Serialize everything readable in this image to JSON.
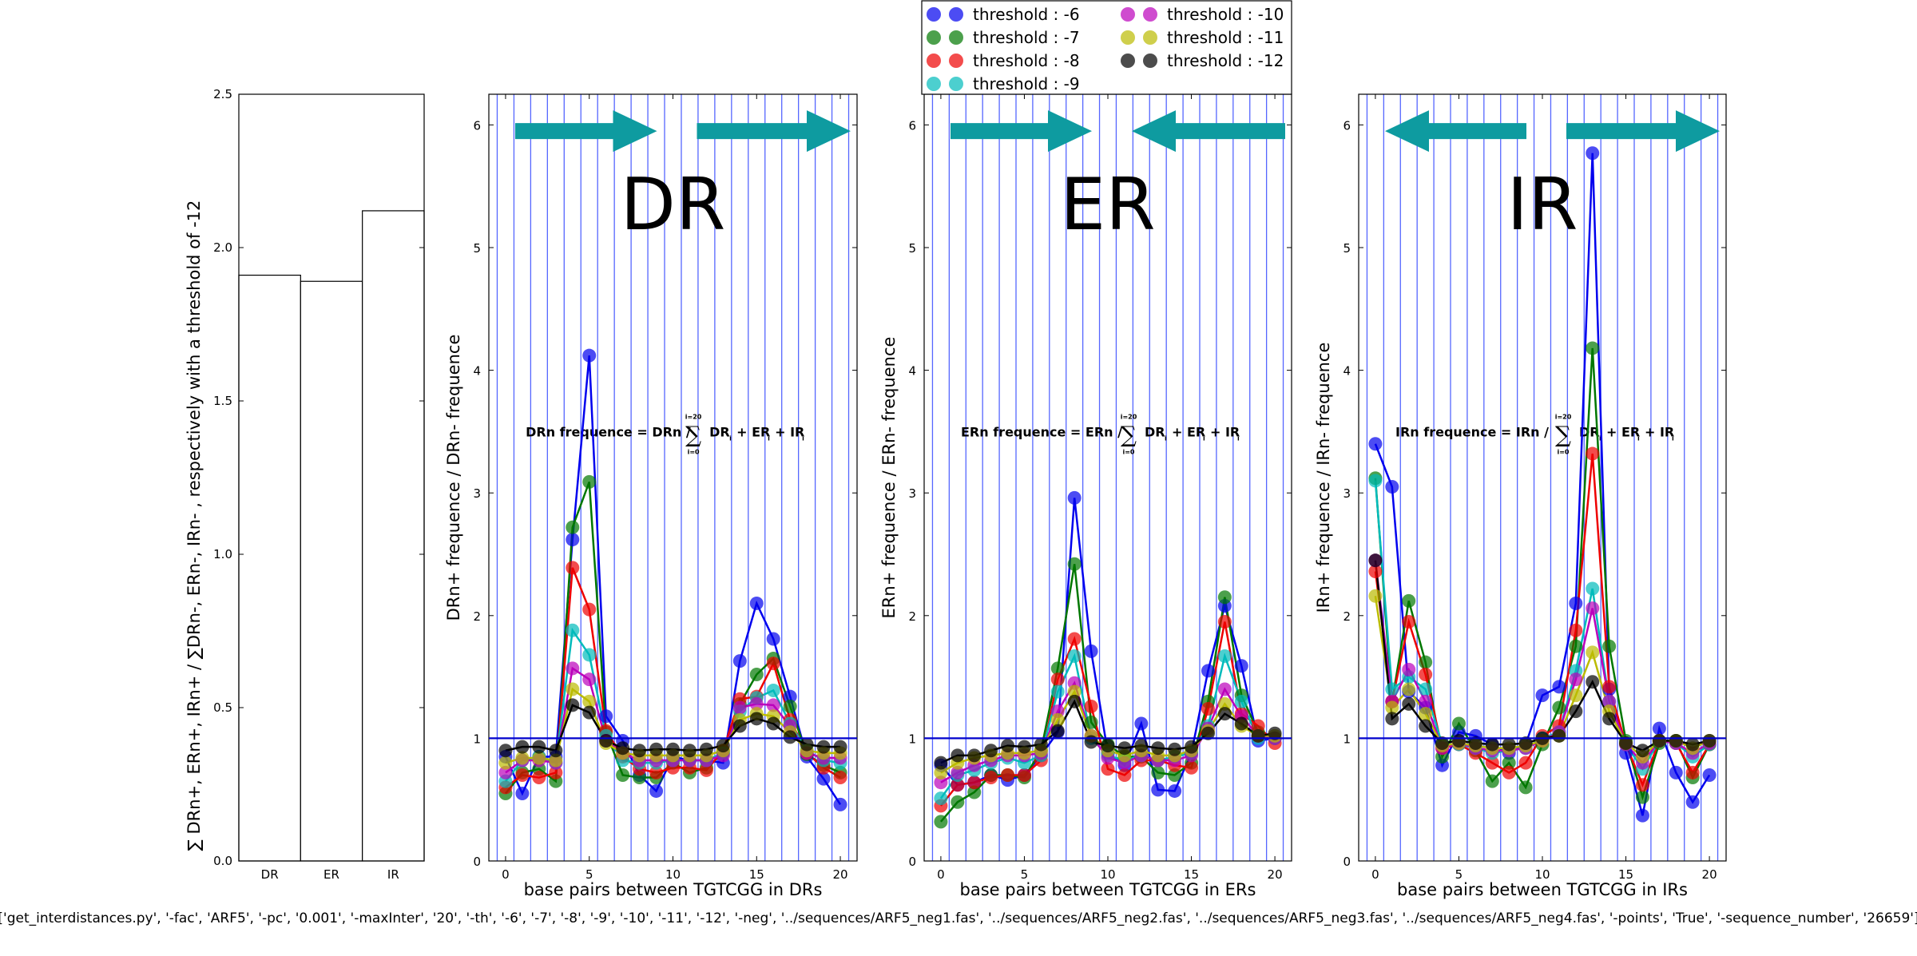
{
  "chart_data": [
    {
      "type": "bar",
      "categories": [
        "DR",
        "ER",
        "IR"
      ],
      "values": [
        1.91,
        1.89,
        2.12
      ],
      "ylim": [
        0,
        2.5
      ],
      "yticks": [
        "0.0",
        "0.5",
        "1.0",
        "1.5",
        "2.0",
        "2.5"
      ],
      "ylabel": "∑ DRn+, ERn+, IRn+ / ∑DRn-, ERn-, IRn- , respectively with a threshold of -12"
    },
    {
      "type": "line",
      "word": "DR",
      "arrows": [
        "right",
        "right"
      ],
      "formula": {
        "lhs": "DRn frequence = DRn /",
        "sum_top": "i=20",
        "sum_bottom": "i=0",
        "rhs": "DR",
        "plus1": "+ ER",
        "plus2": "+ IR",
        "sub": "i"
      },
      "xlabel": "base pairs between TGTCGG in DRs",
      "ylabel": "DRn+ frequence / DRn- frequence",
      "xlim": [
        -1,
        21
      ],
      "ylim": [
        0,
        6.25
      ],
      "xticks": [
        "0",
        "5",
        "10",
        "15",
        "20"
      ],
      "yticks": [
        "0",
        "1",
        "2",
        "3",
        "4",
        "5",
        "6"
      ],
      "reference_line": 1,
      "x": [
        0,
        1,
        2,
        3,
        4,
        5,
        6,
        7,
        8,
        9,
        10,
        11,
        12,
        13,
        14,
        15,
        16,
        17,
        18,
        19,
        20
      ],
      "series": [
        {
          "name": "threshold : -6",
          "color": "#0000ee",
          "values": [
            0.85,
            0.55,
            0.85,
            0.85,
            2.62,
            4.12,
            1.18,
            0.98,
            0.7,
            0.57,
            0.85,
            0.82,
            0.82,
            0.8,
            1.63,
            2.1,
            1.81,
            1.34,
            0.85,
            0.67,
            0.46
          ]
        },
        {
          "name": "threshold : -7",
          "color": "#007700",
          "values": [
            0.55,
            0.72,
            0.75,
            0.65,
            2.72,
            3.09,
            1.05,
            0.7,
            0.68,
            0.68,
            0.8,
            0.72,
            0.76,
            0.88,
            1.28,
            1.52,
            1.65,
            1.26,
            0.87,
            0.78,
            0.72
          ]
        },
        {
          "name": "threshold : -8",
          "color": "#ee0000",
          "values": [
            0.6,
            0.7,
            0.68,
            0.72,
            2.39,
            2.05,
            1.06,
            0.85,
            0.75,
            0.72,
            0.76,
            0.76,
            0.74,
            0.9,
            1.32,
            1.34,
            1.61,
            1.15,
            0.88,
            0.76,
            0.68
          ]
        },
        {
          "name": "threshold : -9",
          "color": "#00bbbb",
          "values": [
            0.65,
            0.82,
            0.85,
            0.8,
            1.88,
            1.68,
            1.02,
            0.82,
            0.8,
            0.8,
            0.82,
            0.82,
            0.82,
            0.88,
            1.22,
            1.33,
            1.39,
            1.12,
            0.9,
            0.82,
            0.8
          ]
        },
        {
          "name": "threshold : -10",
          "color": "#bb00bb",
          "values": [
            0.72,
            0.82,
            0.82,
            0.8,
            1.57,
            1.48,
            0.98,
            0.88,
            0.82,
            0.82,
            0.82,
            0.82,
            0.82,
            0.86,
            1.25,
            1.28,
            1.27,
            1.1,
            0.88,
            0.84,
            0.84
          ]
        },
        {
          "name": "threshold : -11",
          "color": "#bbbb00",
          "values": [
            0.8,
            0.84,
            0.84,
            0.82,
            1.4,
            1.3,
            0.96,
            0.88,
            0.86,
            0.86,
            0.86,
            0.86,
            0.86,
            0.9,
            1.15,
            1.2,
            1.18,
            1.05,
            0.9,
            0.88,
            0.88
          ]
        },
        {
          "name": "threshold : -12",
          "color": "#000000",
          "values": [
            0.9,
            0.93,
            0.93,
            0.9,
            1.27,
            1.21,
            0.98,
            0.92,
            0.9,
            0.91,
            0.91,
            0.9,
            0.91,
            0.94,
            1.1,
            1.16,
            1.12,
            1.01,
            0.95,
            0.93,
            0.93
          ]
        }
      ]
    },
    {
      "type": "line",
      "word": "ER",
      "arrows": [
        "right",
        "left"
      ],
      "formula": {
        "lhs": "ERn frequence = ERn /",
        "sum_top": "i=20",
        "sum_bottom": "i=0",
        "rhs": "DR",
        "plus1": "+ ER",
        "plus2": "+ IR",
        "sub": "i"
      },
      "xlabel": "base pairs between TGTCGG in ERs",
      "ylabel": "ERn+ frequence / ERn- frequence",
      "xlim": [
        -1,
        21
      ],
      "ylim": [
        0,
        6.25
      ],
      "xticks": [
        "0",
        "5",
        "10",
        "15",
        "20"
      ],
      "yticks": [
        "0",
        "1",
        "2",
        "3",
        "4",
        "5",
        "6"
      ],
      "reference_line": 1,
      "x": [
        0,
        1,
        2,
        3,
        4,
        5,
        6,
        7,
        8,
        9,
        10,
        11,
        12,
        13,
        14,
        15,
        16,
        17,
        18,
        19,
        20
      ],
      "series": [
        {
          "name": "threshold : -6",
          "color": "#0000ee",
          "values": [
            0.78,
            0.62,
            0.64,
            0.7,
            0.66,
            0.7,
            0.86,
            1.05,
            2.96,
            1.71,
            0.88,
            0.78,
            1.12,
            0.58,
            0.57,
            0.88,
            1.55,
            2.08,
            1.59,
            0.98,
            1.0
          ]
        },
        {
          "name": "threshold : -7",
          "color": "#007700",
          "values": [
            0.32,
            0.48,
            0.56,
            0.7,
            0.7,
            0.68,
            0.9,
            1.57,
            2.42,
            1.13,
            0.95,
            0.85,
            0.85,
            0.72,
            0.7,
            0.8,
            1.3,
            2.15,
            1.35,
            1.05,
            1.0
          ]
        },
        {
          "name": "threshold : -8",
          "color": "#ee0000",
          "values": [
            0.45,
            0.62,
            0.64,
            0.68,
            0.7,
            0.7,
            0.82,
            1.48,
            1.81,
            1.26,
            0.75,
            0.7,
            0.82,
            0.82,
            0.78,
            0.76,
            1.24,
            1.95,
            1.2,
            1.1,
            0.96
          ]
        },
        {
          "name": "threshold : -9",
          "color": "#00bbbb",
          "values": [
            0.51,
            0.7,
            0.74,
            0.8,
            0.84,
            0.8,
            0.86,
            1.38,
            1.67,
            1.0,
            0.86,
            0.82,
            0.86,
            0.82,
            0.85,
            0.88,
            1.1,
            1.67,
            1.3,
            1.0,
            1.0
          ]
        },
        {
          "name": "threshold : -10",
          "color": "#bb00bb",
          "values": [
            0.64,
            0.72,
            0.78,
            0.82,
            0.86,
            0.86,
            0.88,
            1.22,
            1.45,
            1.02,
            0.84,
            0.8,
            0.86,
            0.82,
            0.82,
            0.86,
            1.08,
            1.4,
            1.18,
            1.02,
            1.0
          ]
        },
        {
          "name": "threshold : -11",
          "color": "#bbbb00",
          "values": [
            0.72,
            0.8,
            0.84,
            0.86,
            0.88,
            0.88,
            0.9,
            1.15,
            1.38,
            1.02,
            0.9,
            0.86,
            0.9,
            0.86,
            0.86,
            0.9,
            1.06,
            1.28,
            1.1,
            1.02,
            1.02
          ]
        },
        {
          "name": "threshold : -12",
          "color": "#000000",
          "values": [
            0.8,
            0.86,
            0.86,
            0.9,
            0.94,
            0.93,
            0.95,
            1.06,
            1.3,
            0.97,
            0.94,
            0.92,
            0.94,
            0.92,
            0.91,
            0.93,
            1.04,
            1.2,
            1.12,
            1.02,
            1.04
          ]
        }
      ]
    },
    {
      "type": "line",
      "word": "IR",
      "arrows": [
        "left",
        "right"
      ],
      "formula": {
        "lhs": "IRn frequence = IRn /",
        "sum_top": "i=20",
        "sum_bottom": "i=0",
        "rhs": "DR",
        "plus1": "+ ER",
        "plus2": "+ IR",
        "sub": "i"
      },
      "xlabel": "base pairs between TGTCGG in IRs",
      "ylabel": "IRn+ frequence / IRn- frequence",
      "xlim": [
        -1,
        21
      ],
      "ylim": [
        0,
        6.25
      ],
      "xticks": [
        "0",
        "5",
        "10",
        "15",
        "20"
      ],
      "yticks": [
        "0",
        "1",
        "2",
        "3",
        "4",
        "5",
        "6"
      ],
      "reference_line": 1,
      "x": [
        0,
        1,
        2,
        3,
        4,
        5,
        6,
        7,
        8,
        9,
        10,
        11,
        12,
        13,
        14,
        15,
        16,
        17,
        18,
        19,
        20
      ],
      "series": [
        {
          "name": "threshold : -6",
          "color": "#0000ee",
          "values": [
            3.4,
            3.05,
            1.38,
            1.25,
            0.78,
            1.05,
            1.02,
            0.95,
            0.88,
            0.95,
            1.35,
            1.42,
            2.1,
            5.77,
            1.4,
            0.88,
            0.37,
            1.08,
            0.72,
            0.48,
            0.7
          ]
        },
        {
          "name": "threshold : -7",
          "color": "#007700",
          "values": [
            3.12,
            1.3,
            2.12,
            1.62,
            0.85,
            1.12,
            0.9,
            0.65,
            0.8,
            0.6,
            0.95,
            1.25,
            1.75,
            4.18,
            1.75,
            0.98,
            0.52,
            0.96,
            0.98,
            0.68,
            0.95
          ]
        },
        {
          "name": "threshold : -8",
          "color": "#ee0000",
          "values": [
            2.36,
            1.3,
            1.95,
            1.52,
            0.92,
            0.95,
            0.88,
            0.8,
            0.72,
            0.8,
            1.02,
            1.1,
            1.88,
            3.32,
            1.42,
            0.95,
            0.62,
            0.98,
            0.96,
            0.72,
            0.95
          ]
        },
        {
          "name": "threshold : -9",
          "color": "#00bbbb",
          "values": [
            3.1,
            1.4,
            1.5,
            1.4,
            0.95,
            0.95,
            0.92,
            0.88,
            0.9,
            0.92,
            1.0,
            1.05,
            1.55,
            2.22,
            1.3,
            0.95,
            0.75,
            0.98,
            0.96,
            0.85,
            0.95
          ]
        },
        {
          "name": "threshold : -10",
          "color": "#bb00bb",
          "values": [
            2.45,
            1.3,
            1.56,
            1.3,
            0.92,
            0.96,
            0.92,
            0.9,
            0.9,
            0.92,
            0.98,
            1.05,
            1.48,
            2.06,
            1.3,
            0.95,
            0.8,
            0.98,
            0.96,
            0.88,
            0.96
          ]
        },
        {
          "name": "threshold : -11",
          "color": "#bbbb00",
          "values": [
            2.16,
            1.25,
            1.4,
            1.2,
            0.94,
            0.96,
            0.94,
            0.92,
            0.92,
            0.94,
            0.98,
            1.02,
            1.35,
            1.7,
            1.22,
            0.96,
            0.85,
            0.98,
            0.98,
            0.92,
            0.98
          ]
        },
        {
          "name": "threshold : -12",
          "color": "#000000",
          "values": [
            2.45,
            1.16,
            1.28,
            1.1,
            0.96,
            0.98,
            0.96,
            0.95,
            0.95,
            0.96,
            1.0,
            1.02,
            1.22,
            1.46,
            1.16,
            0.96,
            0.9,
            0.98,
            0.98,
            0.95,
            0.98
          ]
        }
      ]
    }
  ],
  "legend": {
    "placement": "top-center",
    "items": [
      "threshold : -6",
      "threshold : -7",
      "threshold : -8",
      "threshold : -9",
      "threshold : -10",
      "threshold : -11",
      "threshold : -12"
    ],
    "colors": [
      "#0000ee",
      "#007700",
      "#ee0000",
      "#00bbbb",
      "#bb00bb",
      "#bbbb00",
      "#000000"
    ]
  },
  "styles": {
    "arrow_color": "#0e9ba0",
    "grid_color": "#5566ff",
    "reference_color": "#0000cc"
  },
  "footer_command": "['get_interdistances.py', '-fac', 'ARF5', '-pc', '0.001', '-maxInter', '20', '-th', '-6', '-7', '-8', '-9', '-10', '-11', '-12', '-neg', '../sequences/ARF5_neg1.fas', '../sequences/ARF5_neg2.fas', '../sequences/ARF5_neg3.fas', '../sequences/ARF5_neg4.fas', '-points', 'True', '-sequence_number', '26659']"
}
